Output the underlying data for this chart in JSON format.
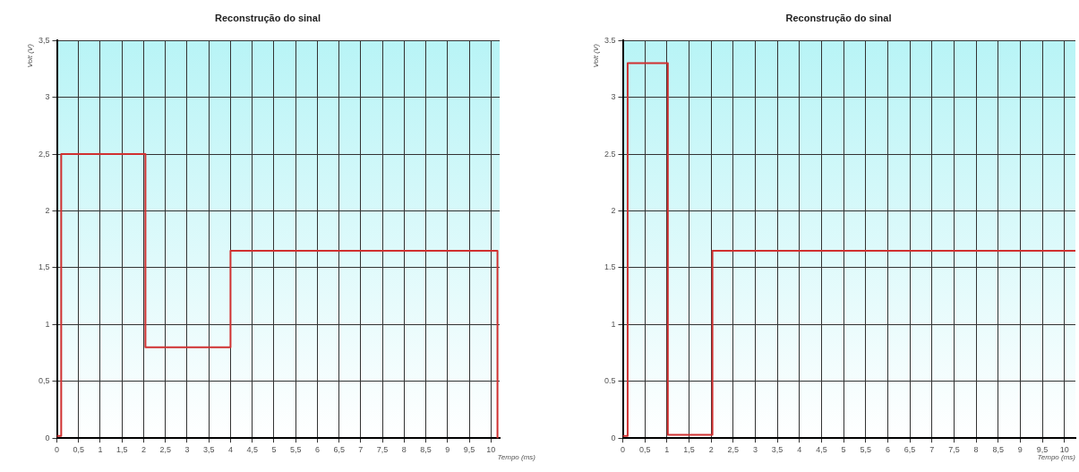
{
  "chart_data": [
    {
      "type": "line",
      "title": "Reconstrução do sinal",
      "xlabel": "Tempo (ms)",
      "ylabel": "Volt (V)",
      "marker": "none",
      "line_style": "solid",
      "grid": true,
      "legend": false,
      "xlim": [
        0,
        10.2
      ],
      "ylim": [
        0,
        3.5
      ],
      "xticks": [
        0,
        {
          "value": 0.5,
          "label": "0,5"
        },
        1,
        {
          "value": 1.5,
          "label": "1,5"
        },
        2,
        {
          "value": 2.5,
          "label": "2,5"
        },
        3,
        {
          "value": 3.5,
          "label": "3,5"
        },
        4,
        {
          "value": 4.5,
          "label": "4,5"
        },
        5,
        {
          "value": 5.5,
          "label": "5,5"
        },
        6,
        {
          "value": 6.5,
          "label": "6,5"
        },
        7,
        {
          "value": 7.5,
          "label": "7,5"
        },
        8,
        {
          "value": 8.5,
          "label": "8,5"
        },
        9,
        {
          "value": 9.5,
          "label": "9,5"
        },
        10
      ],
      "yticks": [
        0,
        {
          "value": 0.5,
          "label": "0,5"
        },
        1,
        {
          "value": 1.5,
          "label": "1,5"
        },
        2,
        {
          "value": 2.5,
          "label": "2,5"
        },
        3,
        {
          "value": 3.5,
          "label": "3,5"
        }
      ],
      "series": [
        {
          "color": "#d03030",
          "x": [
            0,
            0.1,
            0.1,
            2.04,
            2.04,
            4.0,
            4.0,
            10.15,
            10.15
          ],
          "values": [
            0.02,
            0.02,
            2.5,
            2.5,
            0.8,
            0.8,
            1.65,
            1.65,
            0
          ]
        }
      ]
    },
    {
      "type": "line",
      "title": "Reconstrução do sinal",
      "xlabel": "Tempo (ms)",
      "ylabel": "Volt (V)",
      "marker": "none",
      "line_style": "solid",
      "grid": true,
      "legend": false,
      "xlim": [
        0,
        10.25
      ],
      "ylim": [
        0,
        3.5
      ],
      "xticks": [
        0,
        {
          "value": 0.5,
          "label": "0,5"
        },
        1,
        {
          "value": 1.5,
          "label": "1,5"
        },
        2,
        {
          "value": 2.5,
          "label": "2,5"
        },
        3,
        {
          "value": 3.5,
          "label": "3,5"
        },
        4,
        {
          "value": 4.5,
          "label": "4,5"
        },
        5,
        {
          "value": 5.5,
          "label": "5,5"
        },
        6,
        {
          "value": 6.5,
          "label": "6,5"
        },
        7,
        {
          "value": 7.5,
          "label": "7,5"
        },
        8,
        {
          "value": 8.5,
          "label": "8,5"
        },
        9,
        {
          "value": 9.5,
          "label": "9,5"
        },
        10
      ],
      "yticks": [
        0,
        0.5,
        1,
        1.5,
        2,
        2.5,
        3,
        3.5
      ],
      "series": [
        {
          "color": "#d03030",
          "x": [
            0,
            0.11,
            0.11,
            1.02,
            1.02,
            2.03,
            2.03,
            10.25
          ],
          "values": [
            0.02,
            0.02,
            3.3,
            3.3,
            0.03,
            0.03,
            1.65,
            1.65
          ]
        }
      ]
    }
  ]
}
